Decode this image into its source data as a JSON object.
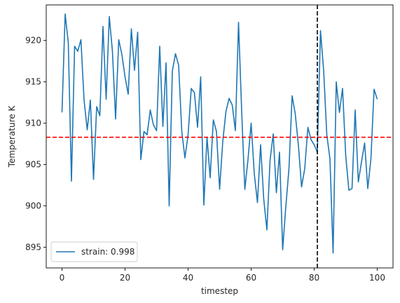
{
  "chart_data": {
    "type": "line",
    "xlabel": "timestep",
    "ylabel": "Temperature K",
    "xlim": [
      -5,
      105
    ],
    "ylim": [
      892.5,
      924.3
    ],
    "xticks": [
      0,
      20,
      40,
      60,
      80,
      100
    ],
    "yticks": [
      895,
      900,
      905,
      910,
      915,
      920
    ],
    "grid": false,
    "legend_position": "lower-left",
    "series": [
      {
        "name": "strain: 0.998",
        "color": "#1f77b4",
        "x": [
          0,
          1,
          2,
          3,
          4,
          5,
          6,
          7,
          8,
          9,
          10,
          11,
          12,
          13,
          14,
          15,
          16,
          17,
          18,
          19,
          20,
          21,
          22,
          23,
          24,
          25,
          26,
          27,
          28,
          29,
          30,
          31,
          32,
          33,
          34,
          35,
          36,
          37,
          38,
          39,
          40,
          41,
          42,
          43,
          44,
          45,
          46,
          47,
          48,
          49,
          50,
          51,
          52,
          53,
          54,
          55,
          56,
          57,
          58,
          59,
          60,
          61,
          62,
          63,
          64,
          65,
          66,
          67,
          68,
          69,
          70,
          71,
          72,
          73,
          74,
          75,
          76,
          77,
          78,
          79,
          80,
          81,
          82,
          83,
          84,
          85,
          86,
          87,
          88,
          89,
          90,
          91,
          92,
          93,
          94,
          95,
          96,
          97,
          98,
          99,
          100
        ],
        "y": [
          911.3,
          923.2,
          919.7,
          903.0,
          919.3,
          918.7,
          920.1,
          912.8,
          909.2,
          912.8,
          903.2,
          912.0,
          910.9,
          921.7,
          912.9,
          922.9,
          918.7,
          910.5,
          920.1,
          918.3,
          915.6,
          913.5,
          921.4,
          916.4,
          921.0,
          905.6,
          909.0,
          908.6,
          911.6,
          909.8,
          909.1,
          919.3,
          909.6,
          917.3,
          900.0,
          916.3,
          918.4,
          917.0,
          909.0,
          905.8,
          908.6,
          914.2,
          913.7,
          909.5,
          915.6,
          900.1,
          908.3,
          903.4,
          910.4,
          909.0,
          902.0,
          907.8,
          911.4,
          913.0,
          912.2,
          909.1,
          922.2,
          911.4,
          902.0,
          905.6,
          910.0,
          903.9,
          900.4,
          907.4,
          900.8,
          897.1,
          905.5,
          908.7,
          901.6,
          906.5,
          894.7,
          899.9,
          904.5,
          913.3,
          911.1,
          907.3,
          902.3,
          904.5,
          909.5,
          908.0,
          907.4,
          906.5,
          921.2,
          916.4,
          908.6,
          905.7,
          894.3,
          915.0,
          911.3,
          914.2,
          906.1,
          901.9,
          902.1,
          911.6,
          902.9,
          905.3,
          907.6,
          902.1,
          905.7,
          914.1,
          912.9
        ]
      }
    ],
    "reference_lines": [
      {
        "orientation": "horizontal",
        "value": 908.3,
        "color": "#ff0000",
        "style": "dashed"
      },
      {
        "orientation": "vertical",
        "value": 81,
        "color": "#000000",
        "style": "dashed"
      }
    ]
  }
}
